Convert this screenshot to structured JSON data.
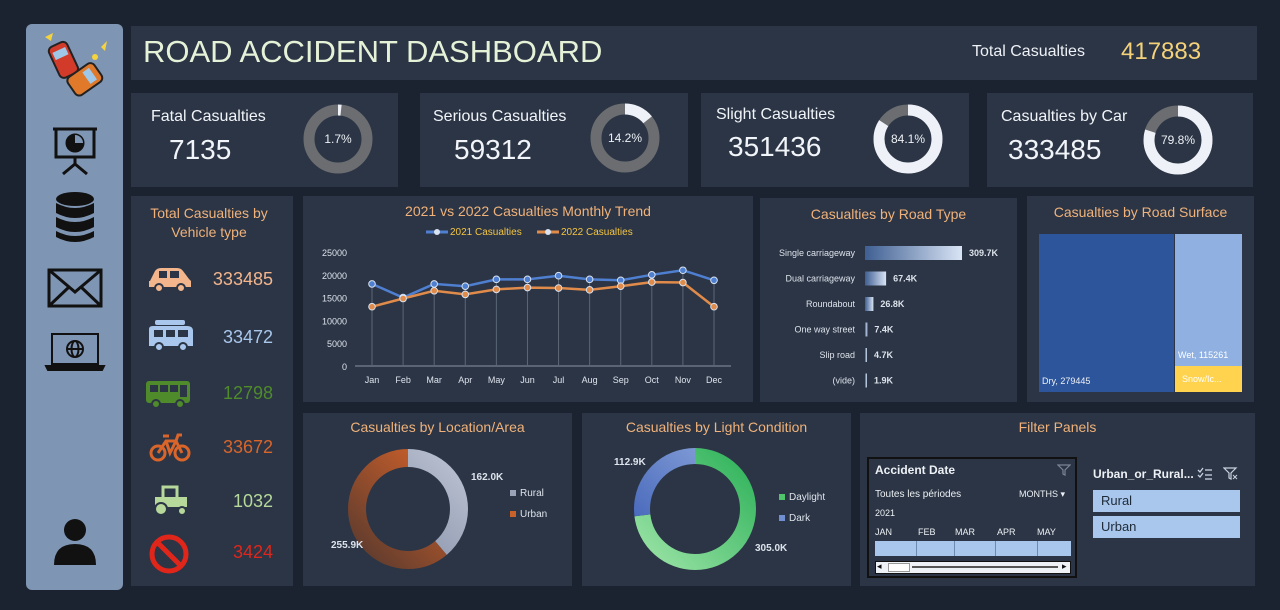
{
  "header": {
    "title": "ROAD ACCIDENT DASHBOARD",
    "total_label": "Total Casualties",
    "total_value": "417883"
  },
  "kpis": [
    {
      "label": "Fatal Casualties",
      "value": "7135",
      "pct_label": "1.7%",
      "pct": 1.7
    },
    {
      "label": "Serious Casualties",
      "value": "59312",
      "pct_label": "14.2%",
      "pct": 14.2
    },
    {
      "label": "Slight Casualties",
      "value": "351436",
      "pct_label": "84.1%",
      "pct": 84.1
    },
    {
      "label": "Casualties by Car",
      "value": "333485",
      "pct_label": "79.8%",
      "pct": 79.8
    }
  ],
  "sidebar": {
    "icons": [
      "car-crash-icon",
      "presentation-icon",
      "database-icon",
      "mail-icon",
      "laptop-globe-icon",
      "user-icon"
    ]
  },
  "vehicle": {
    "title_line1": "Total Casualties by",
    "title_line2": "Vehicle type",
    "items": [
      {
        "icon": "car-icon",
        "value": "333485",
        "color": "#f3b58c"
      },
      {
        "icon": "van-icon",
        "value": "33472",
        "color": "#a9c7ec"
      },
      {
        "icon": "bus-icon",
        "value": "12798",
        "color": "#4f8a2b"
      },
      {
        "icon": "bicycle-icon",
        "value": "33672",
        "color": "#d9652a"
      },
      {
        "icon": "tractor-icon",
        "value": "1032",
        "color": "#b6d89a"
      },
      {
        "icon": "no-entry-icon",
        "value": "3424",
        "color": "#e0261a"
      }
    ]
  },
  "chart_data": [
    {
      "type": "line",
      "title": "2021 vs 2022 Casualties Monthly Trend",
      "categories": [
        "Jan",
        "Feb",
        "Mar",
        "Apr",
        "May",
        "Jun",
        "Jul",
        "Aug",
        "Sep",
        "Oct",
        "Nov",
        "Dec"
      ],
      "series": [
        {
          "name": "2021 Casualties",
          "color": "#4f7fd1",
          "values": [
            18000,
            15000,
            18000,
            17500,
            19000,
            19000,
            19800,
            19000,
            18800,
            20000,
            21000,
            18800
          ]
        },
        {
          "name": "2022 Casualties",
          "color": "#e08b4a",
          "values": [
            13000,
            14800,
            16500,
            15700,
            16800,
            17200,
            17100,
            16700,
            17500,
            18400,
            18300,
            13000
          ]
        }
      ],
      "yticks": [
        "0",
        "5000",
        "10000",
        "15000",
        "20000",
        "25000"
      ],
      "ylim": [
        0,
        25000
      ]
    },
    {
      "type": "bar",
      "title": "Casualties by Road Type",
      "categories": [
        "Single carriageway",
        "Dual carriageway",
        "Roundabout",
        "One way street",
        "Slip road",
        "(vide)"
      ],
      "values": [
        309.7,
        67.4,
        26.8,
        7.4,
        4.7,
        1.9
      ],
      "labels": [
        "309.7K",
        "67.4K",
        "26.8K",
        "7.4K",
        "4.7K",
        "1.9K"
      ]
    },
    {
      "type": "treemap",
      "title": "Casualties by Road Surface",
      "items": [
        {
          "name": "Dry",
          "value": 279445,
          "label": "Dry, 279445",
          "color": "#2d559c"
        },
        {
          "name": "Wet",
          "value": 115261,
          "label": "Wet, 115261",
          "color": "#8fb0e0"
        },
        {
          "name": "Snow/Ice",
          "label": "Snow/Ic...",
          "color": "#ffd34d"
        }
      ]
    },
    {
      "type": "pie",
      "title": "Casualties by Location/Area",
      "slices": [
        {
          "name": "Rural",
          "value": 162.0,
          "label": "162.0K",
          "color": "#9aa3b8"
        },
        {
          "name": "Urban",
          "value": 255.9,
          "label": "255.9K",
          "color": "#c8612a"
        }
      ]
    },
    {
      "type": "pie",
      "title": "Casualties by Light Condition",
      "slices": [
        {
          "name": "Daylight",
          "value": 305.0,
          "label": "305.0K",
          "color": "#4fc46a"
        },
        {
          "name": "Dark",
          "value": 112.9,
          "label": "112.9K",
          "color": "#6f8fd0"
        }
      ]
    }
  ],
  "filter": {
    "title": "Filter Panels",
    "date_title": "Accident Date",
    "period": "Toutes les périodes",
    "unit": "MONTHS",
    "year": "2021",
    "months": [
      "JAN",
      "FEB",
      "MAR",
      "APR",
      "MAY"
    ],
    "area_title": "Urban_or_Rural...",
    "area_items": [
      "Rural",
      "Urban"
    ]
  }
}
